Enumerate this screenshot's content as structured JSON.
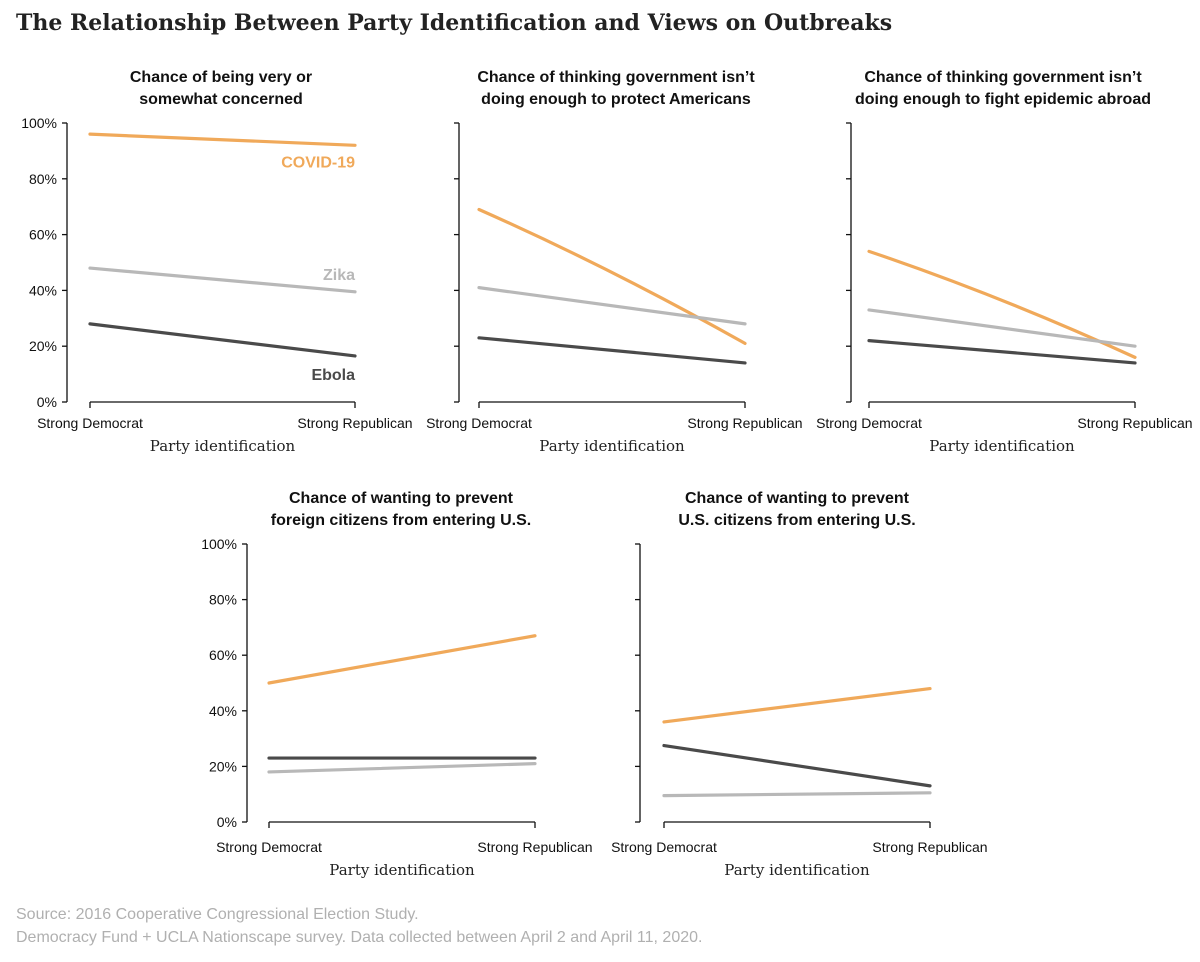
{
  "title": "The Relationship Between Party Identification and Views on Outbreaks",
  "source_lines": [
    "Source: 2016 Cooperative Congressional Election Study.",
    "Democracy Fund + UCLA Nationscape survey. Data collected between April 2 and April 11, 2020."
  ],
  "colors": {
    "COVID-19": "#f0a95a",
    "Zika": "#b8b8b8",
    "Ebola": "#4a4a4a"
  },
  "chart_data": [
    {
      "type": "line",
      "title": [
        "Chance of being very or",
        "somewhat concerned"
      ],
      "xlabel": "Party identification",
      "categories": [
        "Strong Democrat",
        "Strong Republican"
      ],
      "ylim": [
        0,
        100
      ],
      "yticks": [
        "0%",
        "20%",
        "40%",
        "60%",
        "80%",
        "100%"
      ],
      "show_yticklabels": true,
      "series": [
        {
          "name": "COVID-19",
          "values": [
            96,
            92
          ],
          "label": "COVID-19"
        },
        {
          "name": "Zika",
          "values": [
            48,
            39.5
          ],
          "label": "Zika"
        },
        {
          "name": "Ebola",
          "values": [
            28,
            16.5
          ],
          "label": "Ebola"
        }
      ]
    },
    {
      "type": "line",
      "title": [
        "Chance of thinking government isn’t",
        "doing enough to protect Americans"
      ],
      "xlabel": "Party identification",
      "categories": [
        "Strong Democrat",
        "Strong Republican"
      ],
      "ylim": [
        0,
        100
      ],
      "show_yticklabels": false,
      "series": [
        {
          "name": "COVID-19",
          "values": [
            69,
            21
          ]
        },
        {
          "name": "Zika",
          "values": [
            41,
            28
          ]
        },
        {
          "name": "Ebola",
          "values": [
            23,
            14
          ]
        }
      ]
    },
    {
      "type": "line",
      "title": [
        "Chance of thinking government isn’t",
        "doing enough to fight epidemic abroad"
      ],
      "xlabel": "Party identification",
      "categories": [
        "Strong Democrat",
        "Strong Republican"
      ],
      "ylim": [
        0,
        100
      ],
      "show_yticklabels": false,
      "series": [
        {
          "name": "COVID-19",
          "values": [
            54,
            16
          ]
        },
        {
          "name": "Zika",
          "values": [
            33,
            20
          ]
        },
        {
          "name": "Ebola",
          "values": [
            22,
            14
          ]
        }
      ]
    },
    {
      "type": "line",
      "title": [
        "Chance of wanting to prevent",
        "foreign citizens from entering U.S."
      ],
      "xlabel": "Party identification",
      "categories": [
        "Strong Democrat",
        "Strong Republican"
      ],
      "ylim": [
        0,
        100
      ],
      "yticks": [
        "0%",
        "20%",
        "40%",
        "60%",
        "80%",
        "100%"
      ],
      "show_yticklabels": true,
      "series": [
        {
          "name": "COVID-19",
          "values": [
            50,
            67
          ]
        },
        {
          "name": "Zika",
          "values": [
            18,
            21
          ]
        },
        {
          "name": "Ebola",
          "values": [
            23,
            23
          ]
        }
      ]
    },
    {
      "type": "line",
      "title": [
        "Chance of wanting to prevent",
        "U.S. citizens from entering U.S."
      ],
      "xlabel": "Party identification",
      "categories": [
        "Strong Democrat",
        "Strong Republican"
      ],
      "ylim": [
        0,
        100
      ],
      "show_yticklabels": false,
      "series": [
        {
          "name": "COVID-19",
          "values": [
            36,
            48
          ]
        },
        {
          "name": "Zika",
          "values": [
            9.5,
            10.5
          ]
        },
        {
          "name": "Ebola",
          "values": [
            27.5,
            13
          ]
        }
      ]
    }
  ]
}
